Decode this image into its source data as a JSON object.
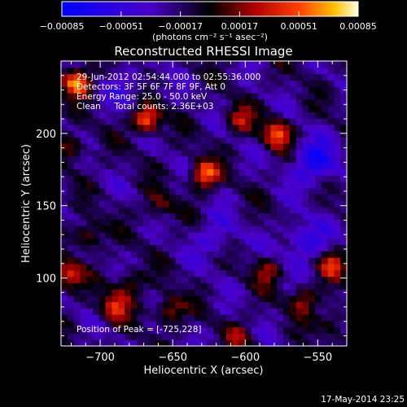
{
  "chart_data": {
    "type": "heatmap",
    "title": "Reconstructed RHESSI Image",
    "xlabel": "Heliocentric X (arcsec)",
    "ylabel": "Heliocentric Y (arcsec)",
    "xlim": [
      -727,
      -530
    ],
    "ylim": [
      53,
      250
    ],
    "x_ticks": [
      -700,
      -650,
      -600,
      -550
    ],
    "y_ticks": [
      100,
      150,
      200
    ],
    "colorbar": {
      "ticks": [
        "-0.00085",
        "-0.00051",
        "-0.00017",
        "0.00017",
        "0.00051",
        "0.00085"
      ],
      "unit_label": "(photons cm⁻² s⁻¹ asec⁻²)",
      "range": [
        -0.00085,
        0.00085
      ]
    },
    "annotations": [
      "29-Jun-2012 02:54:44.000 to 02:55:36.000",
      "Detectors: 3F 5F 6F 7F 8F 9F, Att 0",
      "Energy Range: 25.0 - 50.0 keV",
      "Clean     Total counts: 2.36E+03"
    ],
    "peak_text": "Position of Peak = [-725,228]",
    "peak": [
      -725,
      228
    ],
    "timestamp": "17-May-2014 23:25",
    "sources": [
      {
        "x": -716,
        "y": 236,
        "value": 0.00085
      },
      {
        "x": -668,
        "y": 210,
        "value": 0.0008
      },
      {
        "x": -628,
        "y": 172,
        "value": 0.00075
      },
      {
        "x": -578,
        "y": 200,
        "value": 0.0007
      },
      {
        "x": -604,
        "y": 210,
        "value": 0.00045
      },
      {
        "x": -722,
        "y": 102,
        "value": 0.0006
      },
      {
        "x": -708,
        "y": 130,
        "value": 0.00045
      },
      {
        "x": -690,
        "y": 80,
        "value": 0.0006
      },
      {
        "x": -652,
        "y": 78,
        "value": 0.0005
      },
      {
        "x": -680,
        "y": 96,
        "value": 0.0004
      },
      {
        "x": -540,
        "y": 110,
        "value": 0.00055
      },
      {
        "x": -560,
        "y": 85,
        "value": 0.00045
      },
      {
        "x": -540,
        "y": 70,
        "value": 0.00035
      },
      {
        "x": -585,
        "y": 105,
        "value": 0.0004
      },
      {
        "x": -605,
        "y": 60,
        "value": 0.0003
      },
      {
        "x": -720,
        "y": 190,
        "value": 0.0004
      },
      {
        "x": -660,
        "y": 150,
        "value": 0.00035
      }
    ],
    "negative_sources": [
      {
        "x": -552,
        "y": 180,
        "value": -0.0005
      },
      {
        "x": -560,
        "y": 125,
        "value": -0.0004
      },
      {
        "x": -620,
        "y": 128,
        "value": -0.00025
      },
      {
        "x": -680,
        "y": 232,
        "value": -0.0002
      }
    ]
  }
}
